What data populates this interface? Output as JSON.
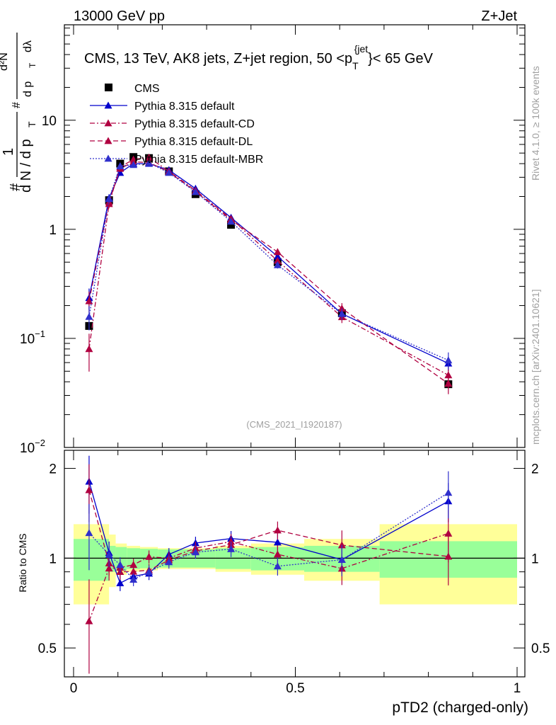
{
  "header": {
    "left": "13000 GeV pp",
    "right": "Z+Jet",
    "side_rivet": "Rivet 4.1.0, ≥ 100k events",
    "side_mcplots": "mcplots.cern.ch [arXiv:2401.10621]"
  },
  "chart_data": {
    "type": "line",
    "title": "CMS, 13 TeV, AK8 jets, Z+jet region, 50 <p_T^{jet}< 65 GeV",
    "title_parts": {
      "main": "CMS, 13 TeV, AK8 jets, Z+jet region, 50 <p",
      "sub": "T",
      "sup": "{jet",
      "sup_close": "}",
      "tail": "< 65 GeV"
    },
    "analysis_tag": "(CMS_2021_I1920187)",
    "xlabel": "pTD2 (charged-only)",
    "ylabel": "1/N dN/dp_T dλ",
    "ylabel_parts": {
      "hash": "#",
      "one": "1",
      "dN": "d N / d p",
      "T": "T",
      "d2N": "d²N",
      "dpT": "d p",
      "dlam": "dλ"
    },
    "ratio_ylabel": "Ratio to CMS",
    "xlim": [
      0,
      1
    ],
    "ylim": [
      0.01,
      75
    ],
    "ratio_ylim": [
      0.4,
      2.3
    ],
    "x_ticks": [
      "0",
      "0.5",
      "1"
    ],
    "x_tick_values": [
      0,
      0.5,
      1
    ],
    "y_ticks": [
      {
        "value": 10,
        "base": "10",
        "exp": ""
      },
      {
        "value": 1,
        "base": "1",
        "exp": ""
      },
      {
        "value": 0.1,
        "base": "10",
        "exp": "−1"
      },
      {
        "value": 0.01,
        "base": "10",
        "exp": "−2"
      }
    ],
    "ratio_y_ticks": [
      {
        "value": 2,
        "label": "2"
      },
      {
        "value": 1,
        "label": "1"
      },
      {
        "value": 0.5,
        "label": "0.5"
      }
    ],
    "bins": [
      [
        0.0,
        0.08
      ],
      [
        0.08,
        0.095
      ],
      [
        0.095,
        0.12
      ],
      [
        0.12,
        0.15
      ],
      [
        0.15,
        0.19
      ],
      [
        0.19,
        0.24
      ],
      [
        0.24,
        0.32
      ],
      [
        0.32,
        0.4
      ],
      [
        0.4,
        0.52
      ],
      [
        0.52,
        0.69
      ],
      [
        0.69,
        1.0
      ]
    ],
    "x": [
      0.035,
      0.08,
      0.105,
      0.135,
      0.17,
      0.215,
      0.275,
      0.355,
      0.46,
      0.605,
      0.845
    ],
    "band_inner": [
      0.16,
      0.1,
      0.09,
      0.08,
      0.075,
      0.07,
      0.07,
      0.08,
      0.09,
      0.1,
      0.14
    ],
    "band_outer": [
      0.3,
      0.2,
      0.12,
      0.1,
      0.09,
      0.08,
      0.08,
      0.1,
      0.12,
      0.16,
      0.3
    ],
    "series": [
      {
        "name": "CMS",
        "label": "CMS",
        "color": "#000000",
        "style": "marker",
        "marker": "square",
        "values": [
          0.13,
          1.85,
          4.0,
          4.6,
          4.5,
          3.4,
          2.1,
          1.1,
          0.5,
          0.17,
          0.038
        ],
        "rel_err": [
          0,
          0,
          0,
          0,
          0,
          0,
          0,
          0,
          0,
          0,
          0
        ]
      },
      {
        "name": "Pythia 8.315 default",
        "label": "Pythia 8.315 default",
        "color": "#0000cc",
        "style": "solid",
        "marker": "triangle",
        "values": [
          0.235,
          1.93,
          3.3,
          4.0,
          4.0,
          3.5,
          2.36,
          1.28,
          0.565,
          0.168,
          0.059
        ],
        "rel_err": [
          0.22,
          0.09,
          0.06,
          0.05,
          0.05,
          0.05,
          0.05,
          0.06,
          0.07,
          0.1,
          0.15
        ]
      },
      {
        "name": "Pythia 8.315 default-CD",
        "label": "Pythia 8.315 default-CD",
        "color": "#b00040",
        "style": "dashdot",
        "marker": "triangle",
        "values": [
          0.08,
          1.71,
          3.72,
          4.37,
          4.55,
          3.4,
          2.27,
          1.25,
          0.515,
          0.157,
          0.046
        ],
        "rel_err": [
          0.38,
          0.09,
          0.06,
          0.05,
          0.05,
          0.05,
          0.05,
          0.06,
          0.07,
          0.12,
          0.2
        ]
      },
      {
        "name": "Pythia 8.315 default-DL",
        "label": "Pythia 8.315 default-DL",
        "color": "#b00040",
        "style": "dashed",
        "marker": "triangle",
        "values": [
          0.22,
          1.78,
          3.6,
          4.15,
          4.1,
          3.35,
          2.22,
          1.22,
          0.62,
          0.188,
          0.0385
        ],
        "rel_err": [
          0.22,
          0.09,
          0.06,
          0.05,
          0.05,
          0.05,
          0.05,
          0.06,
          0.07,
          0.12,
          0.2
        ]
      },
      {
        "name": "Pythia 8.315 default-MBR",
        "label": "Pythia 8.315 default-MBR",
        "color": "#3030cc",
        "style": "dotted",
        "marker": "triangle",
        "values": [
          0.158,
          1.9,
          3.8,
          3.9,
          4.05,
          3.3,
          2.2,
          1.18,
          0.47,
          0.168,
          0.063
        ],
        "rel_err": [
          0.25,
          0.09,
          0.06,
          0.05,
          0.05,
          0.05,
          0.05,
          0.06,
          0.07,
          0.12,
          0.18
        ]
      }
    ]
  }
}
